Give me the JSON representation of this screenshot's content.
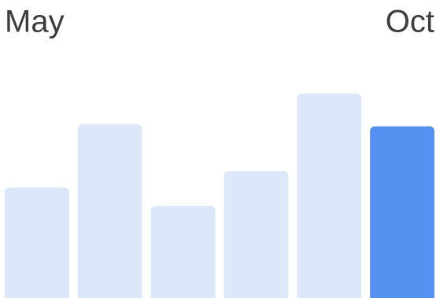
{
  "chart_data": {
    "type": "bar",
    "categories": [
      "May",
      null,
      null,
      null,
      null,
      "Oct"
    ],
    "values": [
      54,
      85,
      45,
      62,
      100,
      84
    ],
    "colors": [
      "#dce8fa",
      "#dce8fa",
      "#dce8fa",
      "#dce8fa",
      "#dce8fa",
      "#5591f0"
    ]
  }
}
